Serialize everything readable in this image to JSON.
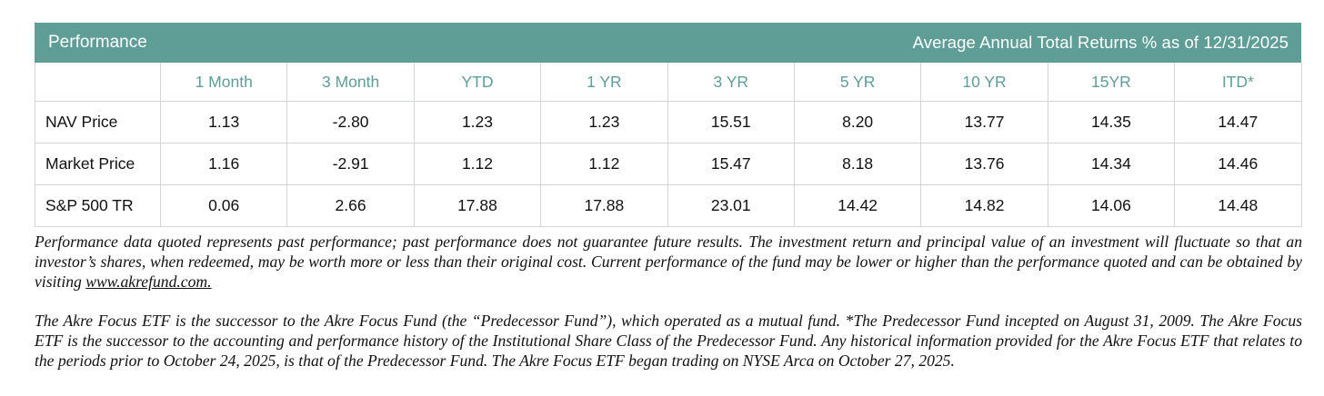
{
  "colors": {
    "accent": "#5e9e96",
    "header_text": "#ffffff",
    "border": "#cfd6d5"
  },
  "header": {
    "title": "Performance",
    "subtitle": "Average Annual Total Returns % as of 12/31/2025"
  },
  "table": {
    "columns": [
      "1 Month",
      "3 Month",
      "YTD",
      "1 YR",
      "3 YR",
      "5 YR",
      "10 YR",
      "15YR",
      "ITD*"
    ],
    "rows": [
      {
        "label": "NAV Price",
        "values": [
          "1.13",
          "-2.80",
          "1.23",
          "1.23",
          "15.51",
          "8.20",
          "13.77",
          "14.35",
          "14.47"
        ]
      },
      {
        "label": "Market Price",
        "values": [
          "1.16",
          "-2.91",
          "1.12",
          "1.12",
          "15.47",
          "8.18",
          "13.76",
          "14.34",
          "14.46"
        ]
      },
      {
        "label": "S&P 500 TR",
        "values": [
          "0.06",
          "2.66",
          "17.88",
          "17.88",
          "23.01",
          "14.42",
          "14.82",
          "14.06",
          "14.48"
        ]
      }
    ]
  },
  "disclosure": {
    "paragraph1_text": "Performance data quoted represents past performance; past performance does not guarantee future results. The investment return and principal value of an investment will fluctuate so that an investor’s shares, when redeemed, may be worth more or less than their original cost. Current performance of the fund may be lower or higher than the performance quoted and can be obtained by visiting ",
    "paragraph1_link": "www.akrefund.com.",
    "paragraph2_text": "The Akre Focus ETF is the successor to the Akre Focus Fund (the “Predecessor Fund”), which operated as a mutual fund. *The Predecessor Fund incepted on August 31, 2009. The Akre Focus ETF is the successor to the accounting and performance history of the Institutional Share Class of the Predecessor Fund.  Any historical information provided for the Akre Focus ETF that relates to the periods prior to October 24, 2025, is that of the Predecessor Fund. The Akre Focus ETF began trading on NYSE Arca on October 27, 2025."
  }
}
